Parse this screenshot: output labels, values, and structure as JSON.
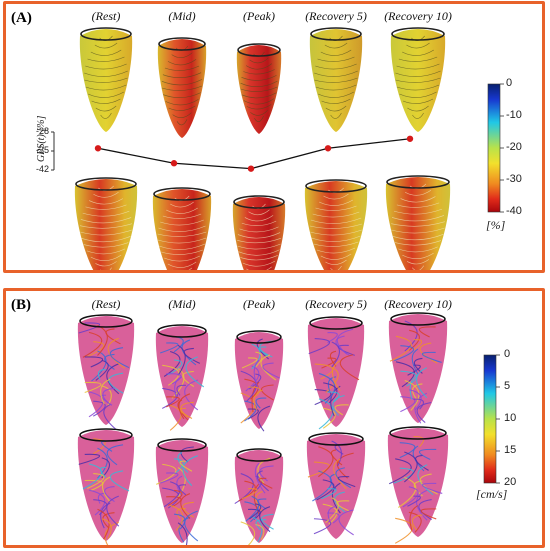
{
  "panel_a": {
    "tag": "(A)",
    "columns": [
      "(Rest)",
      "(Mid)",
      "(Peak)",
      "(Recovery 5)",
      "(Recovery 10)"
    ],
    "gps_axis_label": "GPS(t) [%]",
    "gps_ticks": [
      "-28",
      "-35",
      "-42"
    ],
    "gps_values": [
      -34,
      -39.5,
      -41.5,
      -34,
      -30.5
    ],
    "colorbar_ticks": [
      "0",
      "-10",
      "-20",
      "-30",
      "-40"
    ],
    "colorbar_unit": "[%]"
  },
  "panel_b": {
    "tag": "(B)",
    "columns": [
      "(Rest)",
      "(Mid)",
      "(Peak)",
      "(Recovery 5)",
      "(Recovery 10)"
    ],
    "colorbar_ticks": [
      "0",
      "5",
      "10",
      "15",
      "20"
    ],
    "colorbar_unit": "[cm/s]"
  },
  "colors": {
    "frame": "#e8622a",
    "marker": "#d61a1a",
    "flow_tissue": "#d9609a"
  }
}
